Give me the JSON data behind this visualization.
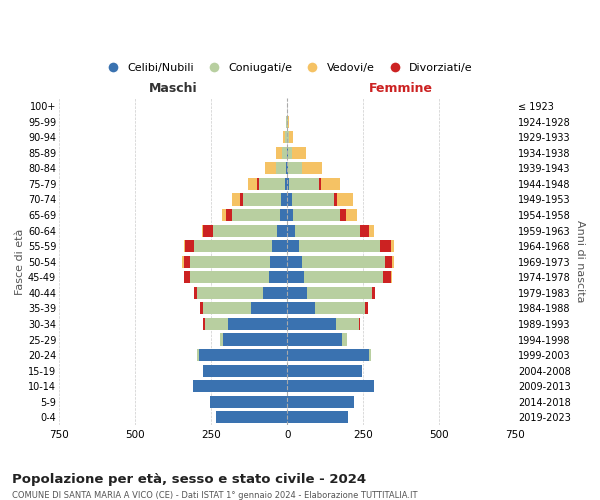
{
  "age_groups": [
    "0-4",
    "5-9",
    "10-14",
    "15-19",
    "20-24",
    "25-29",
    "30-34",
    "35-39",
    "40-44",
    "45-49",
    "50-54",
    "55-59",
    "60-64",
    "65-69",
    "70-74",
    "75-79",
    "80-84",
    "85-89",
    "90-94",
    "95-99",
    "100+"
  ],
  "birth_years": [
    "2019-2023",
    "2014-2018",
    "2009-2013",
    "2004-2008",
    "1999-2003",
    "1994-1998",
    "1989-1993",
    "1984-1988",
    "1979-1983",
    "1974-1978",
    "1969-1973",
    "1964-1968",
    "1959-1963",
    "1954-1958",
    "1949-1953",
    "1944-1948",
    "1939-1943",
    "1934-1938",
    "1929-1933",
    "1924-1928",
    "≤ 1923"
  ],
  "colors": {
    "celibi": "#3a72b0",
    "coniugati": "#b8cfa0",
    "vedovi": "#f5c264",
    "divorziati": "#cc2222"
  },
  "maschi": {
    "celibi": [
      235,
      255,
      310,
      275,
      290,
      210,
      195,
      120,
      80,
      60,
      55,
      50,
      35,
      25,
      20,
      8,
      3,
      2,
      1,
      1,
      0
    ],
    "coniugati": [
      0,
      0,
      0,
      0,
      5,
      10,
      75,
      155,
      215,
      260,
      265,
      255,
      210,
      155,
      125,
      85,
      35,
      15,
      5,
      2,
      0
    ],
    "vedovi": [
      0,
      0,
      0,
      0,
      0,
      0,
      0,
      0,
      0,
      0,
      5,
      5,
      5,
      15,
      25,
      30,
      35,
      20,
      8,
      2,
      0
    ],
    "divorziati": [
      0,
      0,
      0,
      0,
      0,
      0,
      5,
      10,
      10,
      20,
      20,
      30,
      30,
      20,
      10,
      5,
      0,
      0,
      0,
      0,
      0
    ]
  },
  "femmine": {
    "celibi": [
      200,
      220,
      285,
      245,
      270,
      180,
      160,
      90,
      65,
      55,
      50,
      40,
      25,
      18,
      15,
      5,
      3,
      2,
      0,
      0,
      0
    ],
    "coniugati": [
      0,
      0,
      0,
      0,
      5,
      15,
      75,
      165,
      215,
      260,
      270,
      265,
      215,
      155,
      140,
      100,
      45,
      15,
      5,
      2,
      0
    ],
    "vedovi": [
      0,
      0,
      0,
      0,
      0,
      0,
      0,
      0,
      0,
      5,
      5,
      10,
      15,
      35,
      50,
      65,
      65,
      45,
      15,
      3,
      1
    ],
    "divorziati": [
      0,
      0,
      0,
      0,
      0,
      0,
      5,
      10,
      10,
      25,
      25,
      35,
      30,
      20,
      10,
      5,
      2,
      0,
      0,
      0,
      0
    ]
  },
  "xlim": 750,
  "title": "Popolazione per età, sesso e stato civile - 2024",
  "subtitle": "COMUNE DI SANTA MARIA A VICO (CE) - Dati ISTAT 1° gennaio 2024 - Elaborazione TUTTITALIA.IT",
  "xlabel_left": "Maschi",
  "xlabel_right": "Femmine",
  "ylabel_left": "Fasce di età",
  "ylabel_right": "Anni di nascita",
  "bg_color": "#ffffff",
  "grid_color": "#cccccc",
  "legend_labels": [
    "Celibi/Nubili",
    "Coniugati/e",
    "Vedovi/e",
    "Divorziati/e"
  ]
}
